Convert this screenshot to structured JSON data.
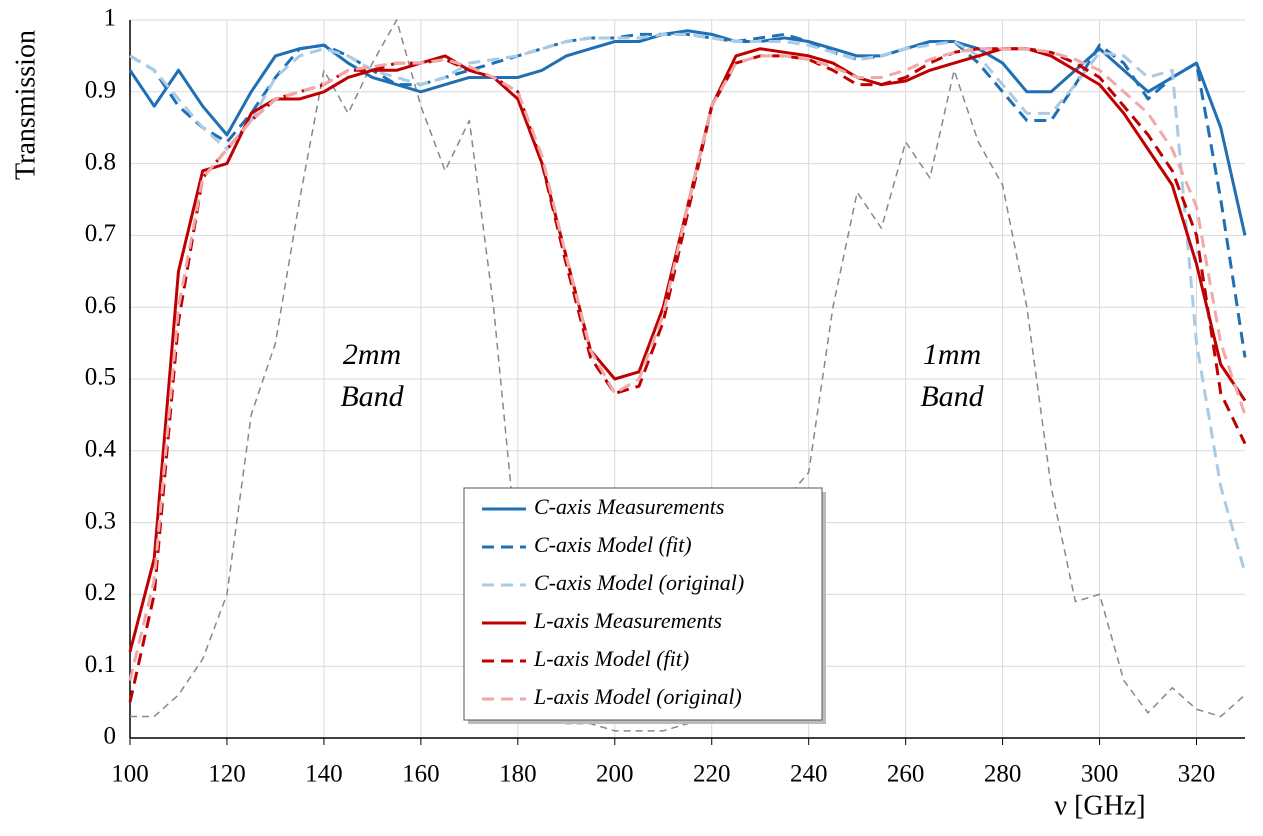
{
  "chart_data": {
    "type": "line",
    "xlabel": "ν [GHz]",
    "ylabel": "Transmission",
    "annotations": [
      {
        "lines": [
          "2mm",
          "Band"
        ]
      },
      {
        "lines": [
          "1mm",
          "Band"
        ]
      }
    ],
    "x": [
      100,
      105,
      110,
      115,
      120,
      125,
      130,
      135,
      140,
      145,
      150,
      155,
      160,
      165,
      170,
      175,
      180,
      185,
      190,
      195,
      200,
      205,
      210,
      215,
      220,
      225,
      230,
      235,
      240,
      245,
      250,
      255,
      260,
      265,
      270,
      275,
      280,
      285,
      290,
      295,
      300,
      305,
      310,
      315,
      320,
      325,
      330
    ],
    "series": [
      {
        "name": "C-axis Measurements",
        "color": "#1f6fb5",
        "dash": "solid",
        "values": [
          0.93,
          0.88,
          0.93,
          0.88,
          0.84,
          0.9,
          0.95,
          0.96,
          0.965,
          0.94,
          0.92,
          0.91,
          0.9,
          0.91,
          0.92,
          0.92,
          0.92,
          0.93,
          0.95,
          0.96,
          0.97,
          0.97,
          0.98,
          0.985,
          0.98,
          0.97,
          0.97,
          0.975,
          0.97,
          0.96,
          0.95,
          0.95,
          0.96,
          0.97,
          0.97,
          0.96,
          0.94,
          0.9,
          0.9,
          0.93,
          0.96,
          0.93,
          0.9,
          0.92,
          0.94,
          0.85,
          0.7
        ]
      },
      {
        "name": "C-axis Model (fit)",
        "color": "#1f6fb5",
        "dash": "dashed",
        "values": [
          0.95,
          0.93,
          0.88,
          0.85,
          0.83,
          0.87,
          0.92,
          0.96,
          0.965,
          0.95,
          0.93,
          0.91,
          0.91,
          0.92,
          0.93,
          0.94,
          0.95,
          0.96,
          0.97,
          0.975,
          0.975,
          0.98,
          0.98,
          0.98,
          0.975,
          0.97,
          0.975,
          0.98,
          0.97,
          0.955,
          0.945,
          0.95,
          0.96,
          0.97,
          0.97,
          0.94,
          0.9,
          0.86,
          0.86,
          0.91,
          0.965,
          0.94,
          0.89,
          0.92,
          0.94,
          0.75,
          0.53
        ]
      },
      {
        "name": "C-axis Model (original)",
        "color": "#a9cbe6",
        "dash": "dashed",
        "values": [
          0.95,
          0.93,
          0.89,
          0.85,
          0.82,
          0.86,
          0.92,
          0.95,
          0.96,
          0.95,
          0.93,
          0.92,
          0.91,
          0.92,
          0.94,
          0.945,
          0.95,
          0.96,
          0.97,
          0.975,
          0.975,
          0.975,
          0.98,
          0.98,
          0.975,
          0.97,
          0.97,
          0.97,
          0.965,
          0.955,
          0.945,
          0.95,
          0.96,
          0.965,
          0.97,
          0.95,
          0.91,
          0.87,
          0.87,
          0.91,
          0.955,
          0.95,
          0.92,
          0.93,
          0.55,
          0.35,
          0.23
        ]
      },
      {
        "name": "L-axis Measurements",
        "color": "#c00000",
        "dash": "solid",
        "values": [
          0.12,
          0.25,
          0.65,
          0.79,
          0.8,
          0.87,
          0.89,
          0.89,
          0.9,
          0.92,
          0.93,
          0.93,
          0.94,
          0.95,
          0.93,
          0.92,
          0.89,
          0.8,
          0.67,
          0.54,
          0.5,
          0.51,
          0.6,
          0.74,
          0.88,
          0.95,
          0.96,
          0.955,
          0.95,
          0.94,
          0.92,
          0.91,
          0.915,
          0.93,
          0.94,
          0.95,
          0.96,
          0.96,
          0.95,
          0.93,
          0.91,
          0.87,
          0.82,
          0.77,
          0.66,
          0.52,
          0.47
        ]
      },
      {
        "name": "L-axis Model (fit)",
        "color": "#c00000",
        "dash": "dashed",
        "values": [
          0.05,
          0.2,
          0.58,
          0.78,
          0.82,
          0.86,
          0.89,
          0.9,
          0.91,
          0.93,
          0.93,
          0.94,
          0.94,
          0.945,
          0.93,
          0.92,
          0.9,
          0.8,
          0.66,
          0.53,
          0.48,
          0.49,
          0.58,
          0.73,
          0.88,
          0.94,
          0.95,
          0.95,
          0.945,
          0.93,
          0.91,
          0.91,
          0.92,
          0.94,
          0.955,
          0.96,
          0.96,
          0.96,
          0.955,
          0.94,
          0.92,
          0.88,
          0.84,
          0.79,
          0.7,
          0.48,
          0.41
        ]
      },
      {
        "name": "L-axis Model (original)",
        "color": "#f0a8a8",
        "dash": "dashed",
        "values": [
          0.08,
          0.22,
          0.6,
          0.78,
          0.82,
          0.86,
          0.89,
          0.9,
          0.91,
          0.93,
          0.935,
          0.94,
          0.94,
          0.945,
          0.935,
          0.92,
          0.9,
          0.81,
          0.67,
          0.54,
          0.48,
          0.5,
          0.59,
          0.74,
          0.88,
          0.94,
          0.95,
          0.95,
          0.945,
          0.935,
          0.92,
          0.92,
          0.93,
          0.945,
          0.955,
          0.96,
          0.96,
          0.96,
          0.955,
          0.945,
          0.93,
          0.9,
          0.87,
          0.82,
          0.74,
          0.55,
          0.45
        ]
      },
      {
        "color": "#888888",
        "dash": "dashed",
        "values": [
          0.03,
          0.03,
          0.06,
          0.11,
          0.2,
          0.45,
          0.55,
          0.75,
          0.93,
          0.87,
          0.94,
          1.0,
          0.88,
          0.79,
          0.86,
          0.6,
          0.25,
          0.04,
          0.02,
          0.02,
          0.01,
          0.01,
          0.01,
          0.02,
          0.05,
          0.1,
          0.2,
          0.33,
          0.37,
          0.6,
          0.76,
          0.71,
          0.83,
          0.78,
          0.93,
          0.83,
          0.77,
          0.6,
          0.35,
          0.19,
          0.2,
          0.08,
          0.035,
          0.07,
          0.04,
          0.03,
          0.06
        ]
      }
    ],
    "xlim": [
      100,
      330
    ],
    "xticks": [
      100,
      120,
      140,
      160,
      180,
      200,
      220,
      240,
      260,
      280,
      300,
      320
    ],
    "ylim": [
      0,
      1
    ],
    "yticks": [
      0,
      0.1,
      0.2,
      0.3,
      0.4,
      0.5,
      0.6,
      0.7,
      0.8,
      0.9,
      1
    ],
    "grid": true
  }
}
